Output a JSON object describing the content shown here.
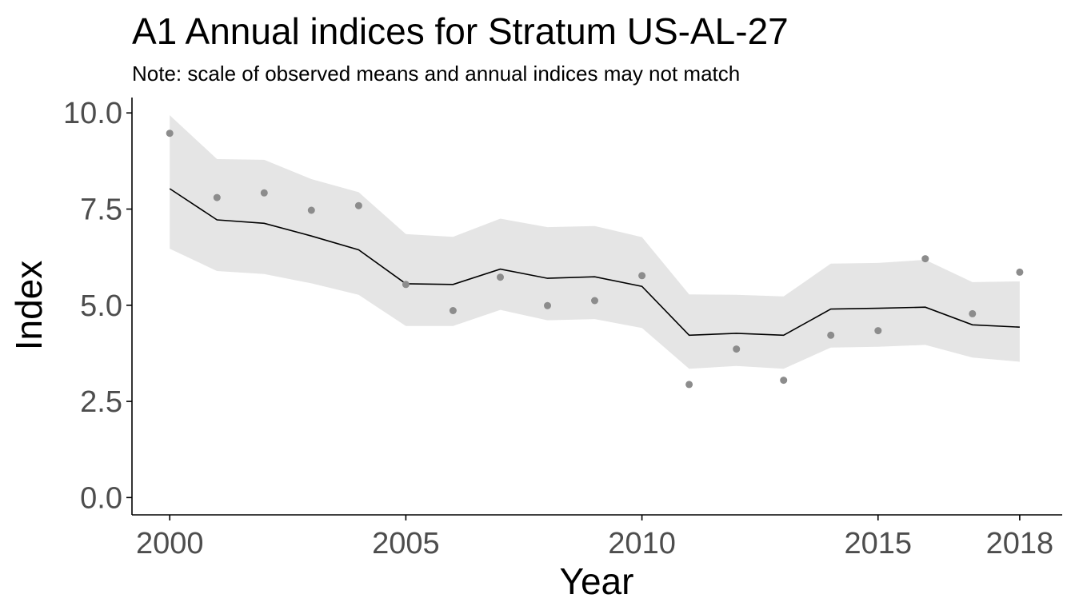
{
  "chart_data": {
    "type": "line",
    "title": "A1 Annual indices for Stratum US-AL-27",
    "subtitle": "Note: scale of observed means and annual indices may not match",
    "xlabel": "Year",
    "ylabel": "Index",
    "xlim": [
      1999.2,
      2018.9
    ],
    "ylim": [
      -0.45,
      10.4
    ],
    "x_ticks": [
      2000,
      2005,
      2010,
      2015,
      2018
    ],
    "x_tick_labels": [
      "2000",
      "2005",
      "2010",
      "2015",
      "2018"
    ],
    "y_ticks": [
      0,
      2.5,
      5,
      7.5,
      10
    ],
    "y_tick_labels": [
      "0.0",
      "2.5",
      "5.0",
      "7.5",
      "10.0"
    ],
    "grid": false,
    "legend": "none",
    "x": [
      2000,
      2001,
      2002,
      2003,
      2004,
      2005,
      2006,
      2007,
      2008,
      2009,
      2010,
      2011,
      2012,
      2013,
      2014,
      2015,
      2016,
      2017,
      2018
    ],
    "series": [
      {
        "kind": "line",
        "values": [
          8.03,
          7.22,
          7.13,
          6.8,
          6.44,
          5.56,
          5.54,
          5.94,
          5.7,
          5.74,
          5.49,
          4.22,
          4.27,
          4.22,
          4.9,
          4.92,
          4.95,
          4.49,
          4.43
        ]
      },
      {
        "kind": "ribbon",
        "lower": [
          6.47,
          5.89,
          5.81,
          5.57,
          5.27,
          4.46,
          4.46,
          4.88,
          4.61,
          4.64,
          4.41,
          3.35,
          3.42,
          3.35,
          3.9,
          3.92,
          3.97,
          3.64,
          3.53
        ],
        "upper": [
          9.94,
          8.8,
          8.78,
          8.28,
          7.94,
          6.85,
          6.78,
          7.25,
          7.03,
          7.06,
          6.77,
          5.28,
          5.27,
          5.23,
          6.08,
          6.1,
          6.18,
          5.6,
          5.62
        ]
      },
      {
        "kind": "points",
        "values": [
          9.47,
          7.8,
          7.92,
          7.47,
          7.59,
          5.54,
          4.86,
          5.73,
          4.99,
          5.12,
          5.77,
          2.94,
          3.86,
          3.05,
          4.22,
          4.34,
          6.21,
          4.78,
          5.86
        ]
      }
    ],
    "colors": {
      "ribbon": "#e5e5e5",
      "line": "#000000",
      "points": "#8c8c8c",
      "axis": "#000000",
      "tick_label": "#4d4d4d"
    }
  }
}
